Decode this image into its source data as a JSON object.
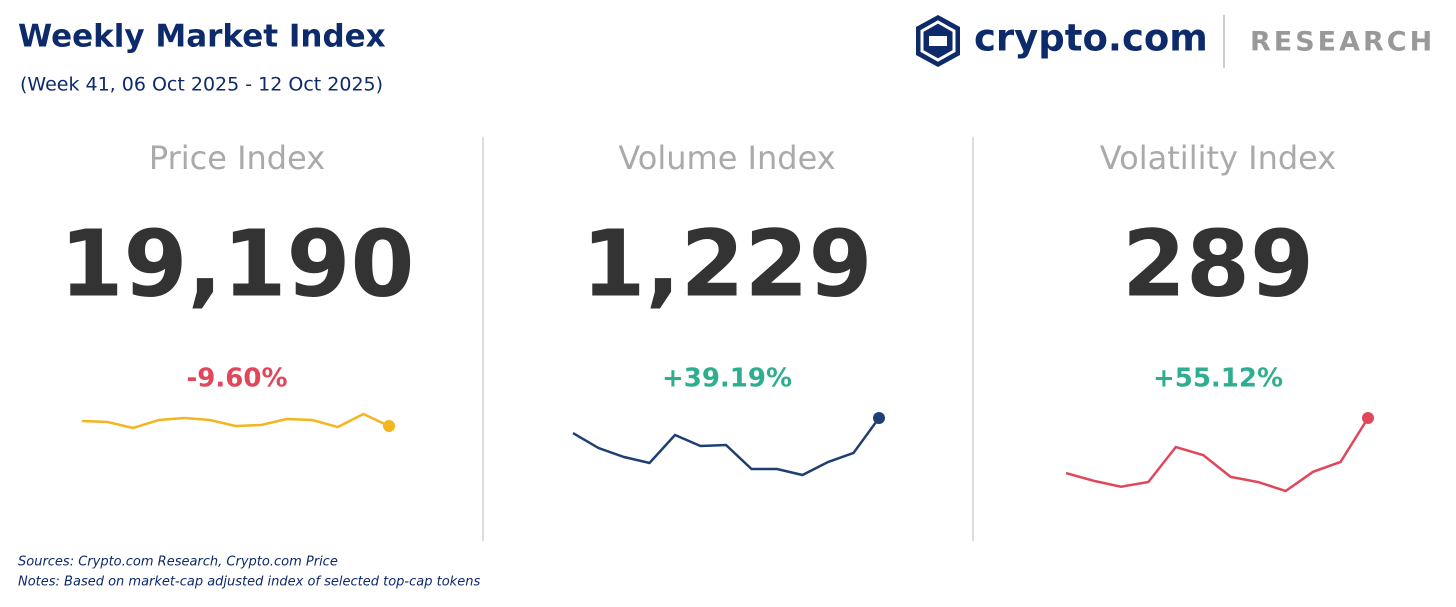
{
  "header": {
    "title": "Weekly Market Index",
    "subtitle": "(Week 41, 06 Oct 2025 - 12 Oct 2025)",
    "brand": "crypto.com",
    "section": "RESEARCH"
  },
  "panels": [
    {
      "title": "Price Index",
      "value": "19,190",
      "change": "-9.60%",
      "change_color": "#e0475b",
      "line_color": "#f3b520",
      "sparkline": [
        19980,
        19820,
        18880,
        20130,
        20450,
        20130,
        19190,
        19350,
        20290,
        20130,
        19030,
        21070,
        19190
      ]
    },
    {
      "title": "Volume Index",
      "value": "1,229",
      "change": "+39.19%",
      "change_color": "#2fae8f",
      "line_color": "#1f3f74",
      "sparkline": [
        1080,
        932,
        843,
        784,
        1061,
        952,
        962,
        724,
        724,
        665,
        793,
        883,
        1229
      ]
    },
    {
      "title": "Volatility Index",
      "value": "289",
      "change": "+55.12%",
      "change_color": "#2fae8f",
      "line_color": "#e0475b",
      "sparkline": [
        160,
        142,
        128,
        139,
        221,
        202,
        151,
        139,
        118,
        163,
        186,
        289
      ]
    }
  ],
  "footer": {
    "sources": "Sources: Crypto.com Research,  Crypto.com Price",
    "notes": "Notes: Based on market-cap adjusted index of selected top-cap tokens"
  }
}
